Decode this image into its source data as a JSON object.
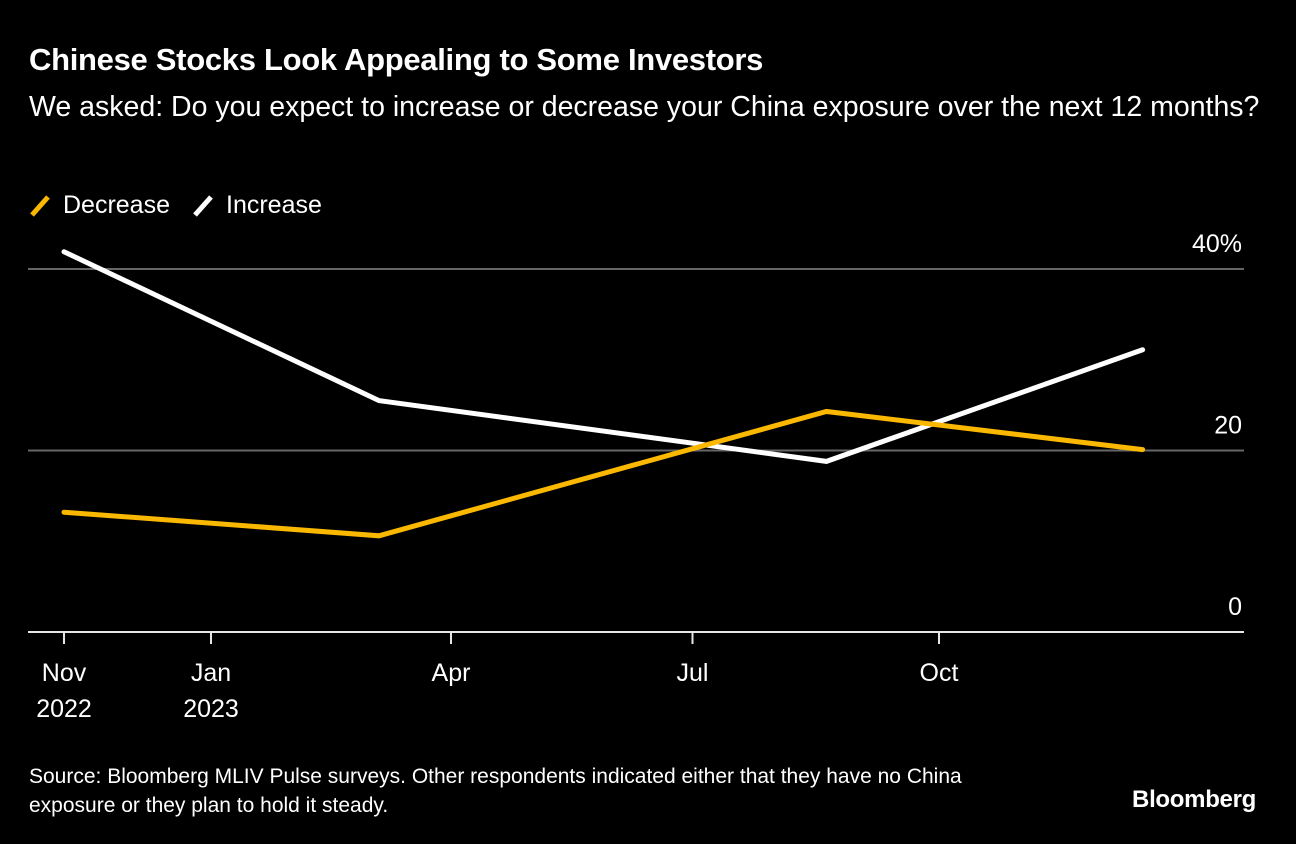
{
  "title": "Chinese Stocks Look Appealing to Some Investors",
  "subtitle": "We asked: Do you expect to increase or decrease your China exposure over the next 12 months?",
  "source": "Source: Bloomberg MLIV Pulse surveys. Other respondents indicated either that they have no China exposure or they plan to hold it steady.",
  "logo": "Bloomberg",
  "chart_data": {
    "type": "line",
    "title": "Chinese Stocks Look Appealing to Some Investors",
    "subtitle": "We asked: Do you expect to increase or decrease your China exposure over the next 12 months?",
    "xlabel": "",
    "ylabel": "",
    "x": [
      "2022-11-01",
      "2023-03-05",
      "2023-08-20",
      "2023-12-16"
    ],
    "series": [
      {
        "name": "Decrease",
        "color": "#FBB800",
        "values": [
          13.2,
          10.6,
          24.3,
          20.1
        ]
      },
      {
        "name": "Increase",
        "color": "#FFFFFF",
        "values": [
          41.9,
          25.5,
          18.8,
          31.1
        ]
      }
    ],
    "ylim": [
      0,
      40
    ],
    "yticks": [
      {
        "value": 0,
        "label": "0"
      },
      {
        "value": 20,
        "label": "20"
      },
      {
        "value": 40,
        "label": "40%"
      }
    ],
    "xticks": [
      {
        "date": "2022-11-01",
        "label": [
          "Nov",
          "2022"
        ]
      },
      {
        "date": "2023-01-01",
        "label": [
          "Jan",
          "2023"
        ]
      },
      {
        "date": "2023-04-01",
        "label": [
          "Apr"
        ]
      },
      {
        "date": "2023-07-01",
        "label": [
          "Jul"
        ]
      },
      {
        "date": "2023-10-01",
        "label": [
          "Oct"
        ]
      }
    ],
    "grid": true,
    "legend": "top-left"
  }
}
